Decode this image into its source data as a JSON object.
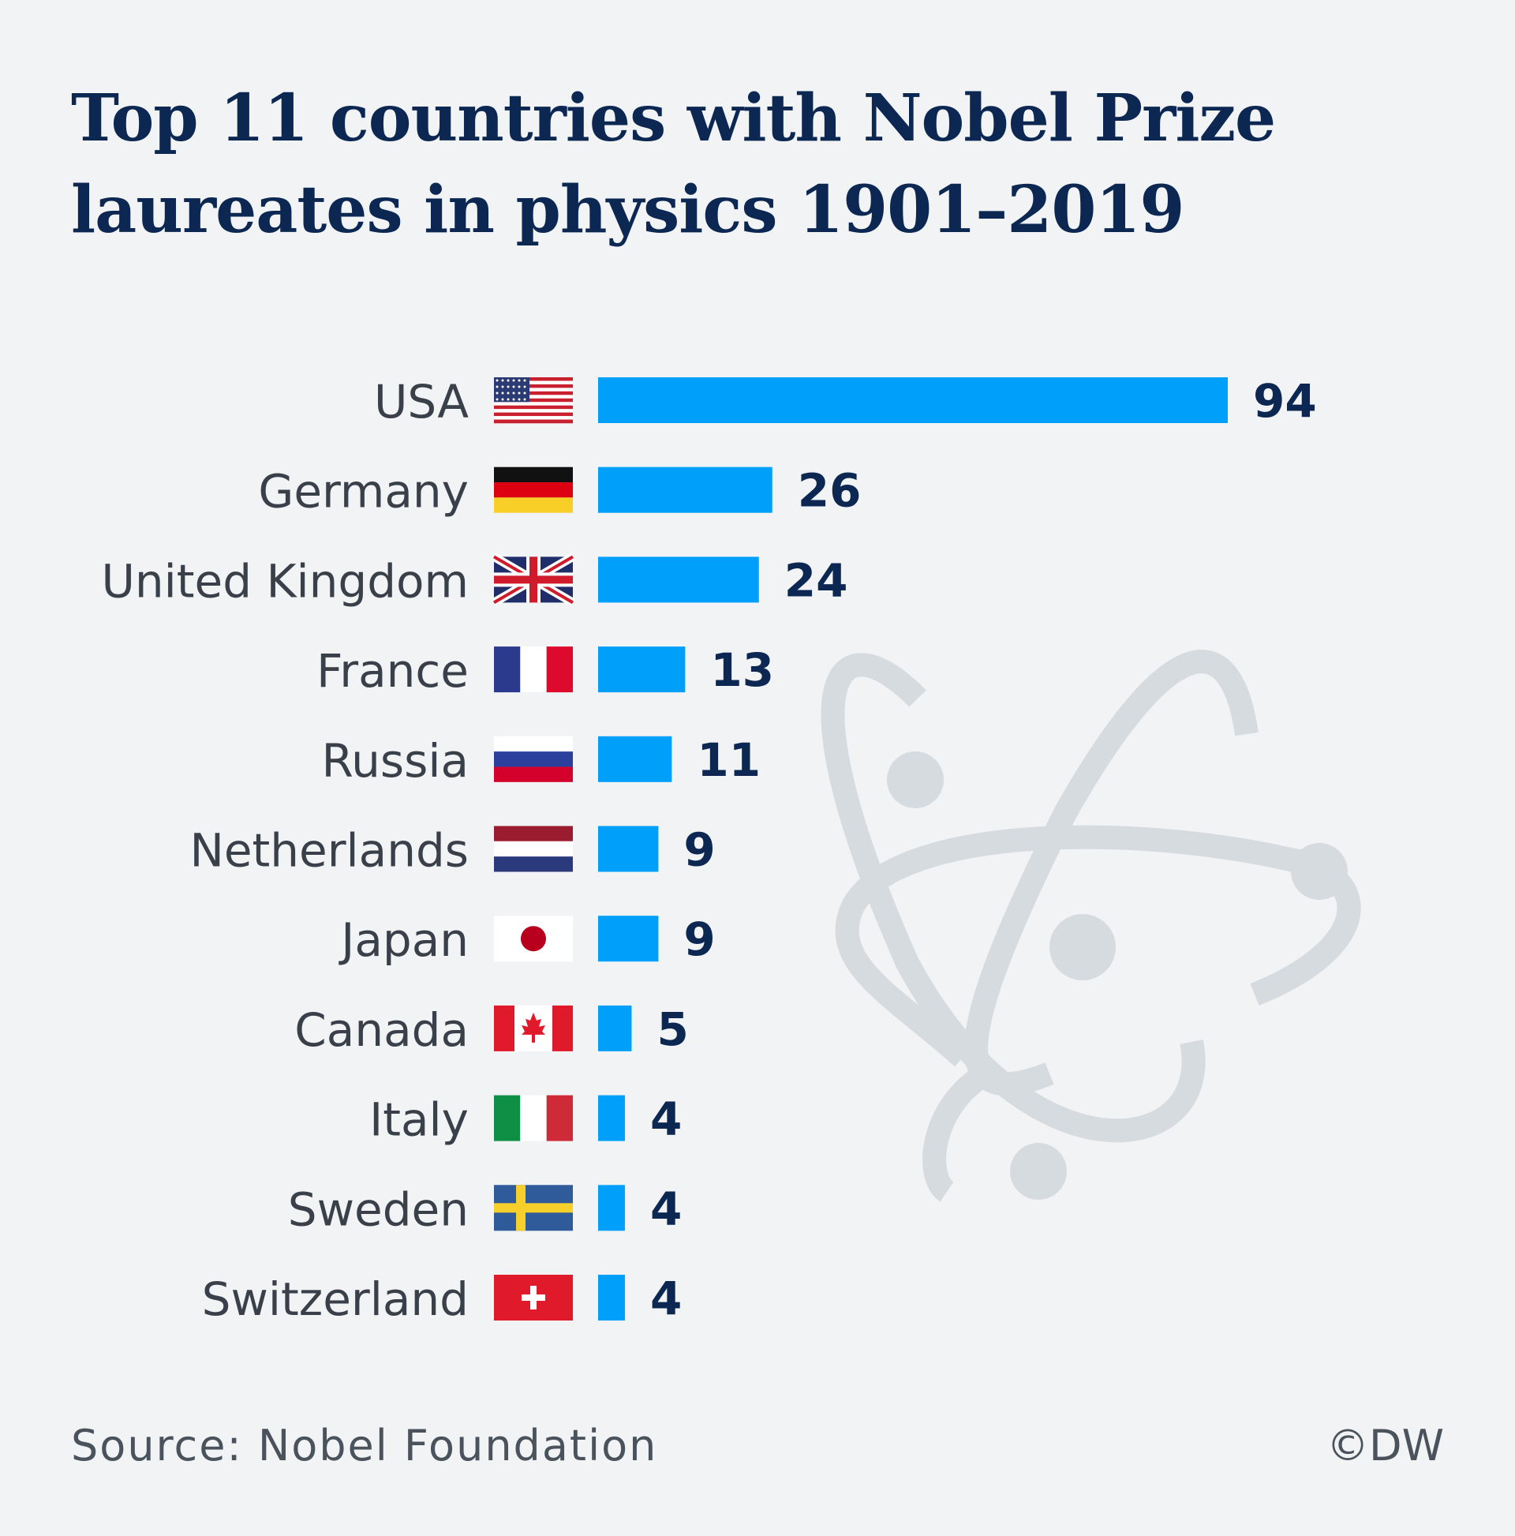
{
  "chart_data": {
    "type": "bar",
    "orientation": "horizontal",
    "title_lines": [
      "Top 11 countries with Nobel Prize",
      "laureates in physics 1901–2019"
    ],
    "categories": [
      "USA",
      "Germany",
      "United Kingdom",
      "France",
      "Russia",
      "Netherlands",
      "Japan",
      "Canada",
      "Italy",
      "Sweden",
      "Switzerland"
    ],
    "values": [
      94,
      26,
      24,
      13,
      11,
      9,
      9,
      5,
      4,
      4,
      4
    ],
    "flags": [
      "usa-flag-icon",
      "germany-flag-icon",
      "uk-flag-icon",
      "france-flag-icon",
      "russia-flag-icon",
      "netherlands-flag-icon",
      "japan-flag-icon",
      "canada-flag-icon",
      "italy-flag-icon",
      "sweden-flag-icon",
      "switzerland-flag-icon"
    ],
    "xlim": [
      0,
      94
    ],
    "bar_color": "#00a0fa",
    "value_label_color": "#0c2852",
    "category_label_color": "#3a4049",
    "grid": false,
    "legend": "none",
    "decoration": "atom-icon"
  },
  "footer": {
    "source": "Source: Nobel Foundation",
    "credit": "©DW"
  }
}
